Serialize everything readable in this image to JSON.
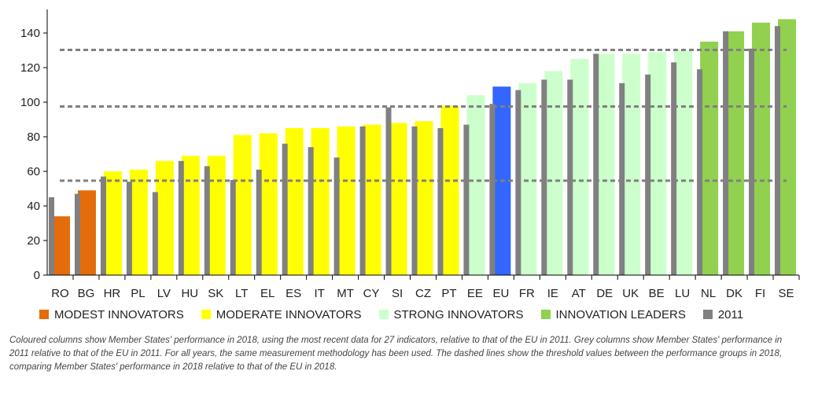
{
  "chart_data": {
    "type": "bar",
    "ylim": [
      0,
      150
    ],
    "yticks": [
      0,
      20,
      40,
      60,
      80,
      100,
      120,
      140
    ],
    "categories": [
      "RO",
      "BG",
      "HR",
      "PL",
      "LV",
      "HU",
      "SK",
      "LT",
      "EL",
      "ES",
      "IT",
      "MT",
      "CY",
      "SI",
      "CZ",
      "PT",
      "EE",
      "EU",
      "FR",
      "IE",
      "AT",
      "DE",
      "UK",
      "BE",
      "LU",
      "NL",
      "DK",
      "FI",
      "SE"
    ],
    "groups": [
      "modest",
      "modest",
      "moderate",
      "moderate",
      "moderate",
      "moderate",
      "moderate",
      "moderate",
      "moderate",
      "moderate",
      "moderate",
      "moderate",
      "moderate",
      "moderate",
      "moderate",
      "moderate",
      "strong",
      "eu",
      "strong",
      "strong",
      "strong",
      "strong",
      "strong",
      "strong",
      "strong",
      "leader",
      "leader",
      "leader",
      "leader"
    ],
    "series": [
      {
        "name": "2018",
        "values": [
          34,
          49,
          60,
          61,
          66,
          69,
          69,
          81,
          82,
          85,
          85,
          86,
          87,
          88,
          89,
          98,
          104,
          109,
          111,
          118,
          125,
          128,
          128,
          129,
          130,
          135,
          141,
          146,
          148
        ]
      },
      {
        "name": "2011",
        "values": [
          45,
          47,
          57,
          54,
          48,
          66,
          63,
          55,
          61,
          76,
          74,
          68,
          86,
          97,
          86,
          85,
          87,
          99,
          107,
          113,
          113,
          128,
          111,
          116,
          123,
          119,
          141,
          131,
          144
        ]
      }
    ],
    "thresholds": [
      54.6,
      97.5,
      130.2
    ],
    "colors": {
      "modest": "#e46c0a",
      "moderate": "#ffff00",
      "strong": "#ccffcc",
      "leader": "#92d050",
      "eu": "#3366ff",
      "grey2011": "#808080",
      "threshold": "#808080",
      "axis": "#000000"
    },
    "legend": [
      {
        "label": "MODEST INNOVATORS",
        "color": "#e46c0a"
      },
      {
        "label": "MODERATE INNOVATORS",
        "color": "#ffff00"
      },
      {
        "label": "STRONG INNOVATORS",
        "color": "#ccffcc"
      },
      {
        "label": "INNOVATION LEADERS",
        "color": "#92d050"
      },
      {
        "label": "2011",
        "color": "#808080"
      }
    ],
    "legend_position": "bottom"
  },
  "caption": "Coloured columns show Member States' performance in 2018, using the most recent data for 27 indicators, relative to that of the EU in 2011. Grey columns show Member States' performance in 2011 relative to that of the EU in 2011. For all years, the same measurement methodology has been used. The dashed lines show the threshold values between the performance groups in 2018, comparing Member States' performance in 2018 relative to that of the EU in 2018."
}
